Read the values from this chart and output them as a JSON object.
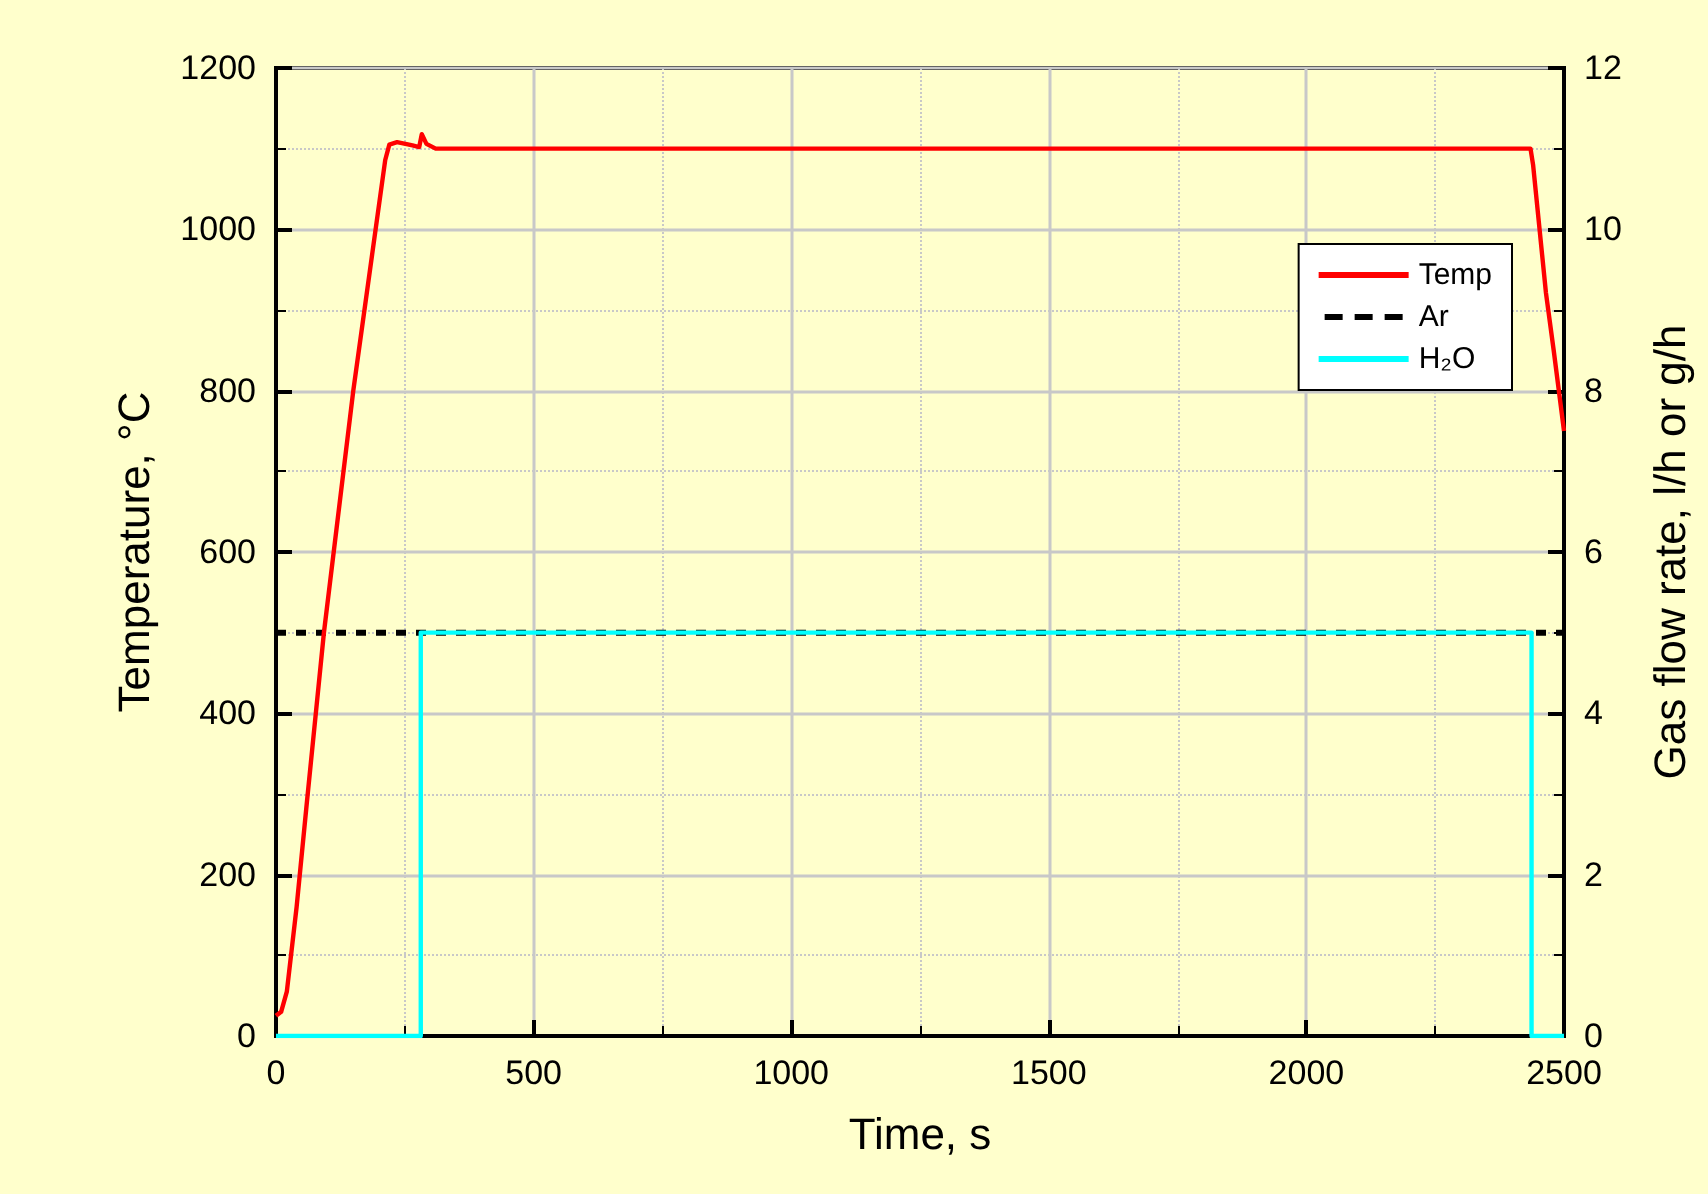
{
  "chart_data": {
    "type": "line",
    "xlabel": "Time, s",
    "ylabel": "Temperature, °C",
    "y2label": "Gas flow rate, l/h or g/h",
    "xlim": [
      0,
      2500
    ],
    "xticks": [
      0,
      500,
      1000,
      1500,
      2000,
      2500
    ],
    "ylim": [
      0,
      1200
    ],
    "yticks": [
      0,
      200,
      400,
      600,
      800,
      1000,
      1200
    ],
    "y2lim": [
      0,
      12
    ],
    "y2ticks": [
      0,
      2,
      4,
      6,
      8,
      10,
      12
    ],
    "grid": true,
    "legend": "top right",
    "marker": "none",
    "series": [
      {
        "name": "Temp",
        "color": "#ff0000",
        "line_style": "solid",
        "x": [
          0,
          10,
          21,
          40,
          60,
          93,
          150,
          212,
          220,
          235,
          265,
          278,
          283,
          292,
          310,
          560,
          2435,
          2440,
          2465,
          2480,
          2500
        ],
        "values": [
          25,
          30,
          55,
          160,
          290,
          500,
          800,
          1086,
          1105,
          1108,
          1104,
          1102,
          1118,
          1106,
          1100,
          1100,
          1100,
          1080,
          921,
          850,
          750
        ]
      },
      {
        "name": "Ar",
        "color": "#000000",
        "line_style": "dashed",
        "axis": "y2",
        "x": [
          0,
          2500
        ],
        "values": [
          5,
          5
        ]
      },
      {
        "name": "H₂O",
        "color": "#00ffff",
        "line_style": "solid",
        "axis": "y2",
        "x": [
          0,
          281,
          281,
          2437,
          2437,
          2500
        ],
        "values": [
          0,
          0,
          5,
          5,
          0,
          0
        ]
      }
    ]
  }
}
